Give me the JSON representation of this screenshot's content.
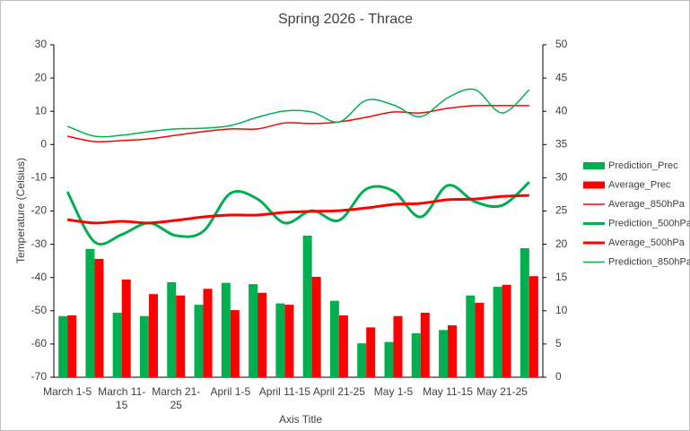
{
  "chart_data": {
    "type": "combo",
    "title": "Spring 2026 - Thrace",
    "x_label": "Axis Title",
    "y_label": "Temperature (Celsius)",
    "categories": [
      "March 1-5",
      null,
      "March 11-15",
      null,
      "March 21-25",
      null,
      "April 1-5",
      null,
      "April 11-15",
      null,
      "April 21-25",
      null,
      "May 1-5",
      null,
      "May 11-15",
      null,
      "May 21-25",
      null
    ],
    "ylim": [
      -70,
      30
    ],
    "yticks": [
      -70,
      -60,
      -50,
      -40,
      -30,
      -20,
      -10,
      0,
      10,
      20,
      30
    ],
    "y2lim": [
      0,
      50
    ],
    "y2ticks": [
      0,
      5,
      10,
      15,
      20,
      25,
      30,
      35,
      40,
      45,
      50
    ],
    "legend": "right",
    "series": [
      {
        "name": "Prediction_Prec",
        "type": "bar",
        "axis": "y2",
        "color": "#00b050",
        "values": [
          9.2,
          19.3,
          9.7,
          9.2,
          14.3,
          10.9,
          14.2,
          14.0,
          11.1,
          21.3,
          11.5,
          5.1,
          5.3,
          6.6,
          7.1,
          12.3,
          13.6,
          19.4
        ]
      },
      {
        "name": "Average_Prec",
        "type": "bar",
        "axis": "y2",
        "color": "#ff0000",
        "values": [
          9.3,
          17.8,
          14.7,
          12.5,
          12.3,
          13.3,
          10.1,
          12.7,
          10.9,
          15.1,
          9.3,
          7.5,
          9.2,
          9.7,
          7.8,
          11.2,
          13.9,
          15.2
        ]
      },
      {
        "name": "Average_850hPa",
        "type": "line",
        "color": "#ff0000",
        "line_width": 1.5,
        "values": [
          2.5,
          0.9,
          1.2,
          1.7,
          2.8,
          3.9,
          4.7,
          4.7,
          6.5,
          6.3,
          6.8,
          8.2,
          9.8,
          9.5,
          10.9,
          11.7,
          11.7,
          11.7
        ]
      },
      {
        "name": "Prediction_500hPa",
        "type": "line",
        "color": "#00b050",
        "line_width": 3,
        "values": [
          -14.2,
          -29.3,
          -27.1,
          -23.6,
          -27.4,
          -26.1,
          -14.7,
          -16.4,
          -23.6,
          -19.9,
          -22.8,
          -13.4,
          -14.0,
          -21.8,
          -12.3,
          -17.2,
          -18.3,
          -11.3
        ]
      },
      {
        "name": "Average_500hPa",
        "type": "line",
        "color": "#ff0000",
        "line_width": 3,
        "values": [
          -22.6,
          -23.6,
          -23.1,
          -23.6,
          -22.8,
          -21.8,
          -21.2,
          -21.2,
          -20.4,
          -20.1,
          -19.9,
          -19.1,
          -18.0,
          -17.7,
          -16.6,
          -16.4,
          -15.6,
          -15.3
        ]
      },
      {
        "name": "Prediction_850hPa",
        "type": "line",
        "color": "#00b050",
        "line_width": 1.5,
        "values": [
          5.5,
          2.5,
          2.8,
          3.9,
          4.7,
          4.9,
          5.7,
          8.2,
          10.1,
          9.8,
          6.8,
          13.3,
          11.9,
          8.4,
          14.1,
          16.5,
          9.5,
          16.5
        ]
      }
    ]
  }
}
